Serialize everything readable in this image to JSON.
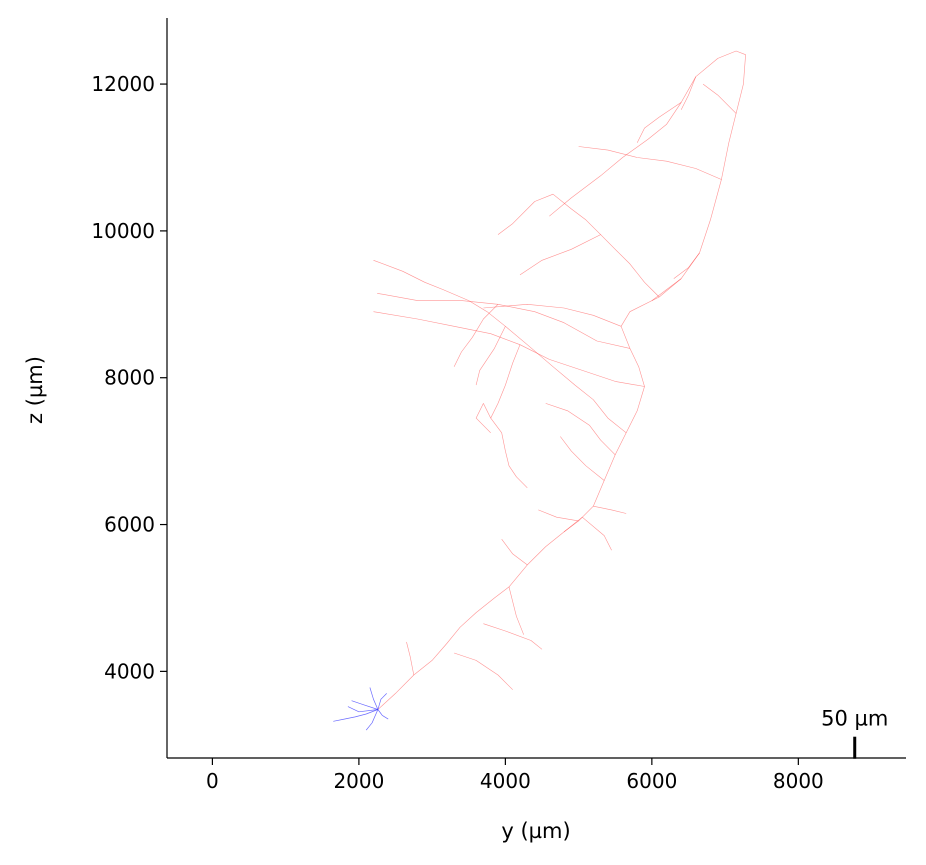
{
  "chart_data": {
    "type": "line",
    "title": "",
    "xlabel": "y (µm)",
    "ylabel": "z (µm)",
    "xlim": [
      -620,
      9470
    ],
    "ylim": [
      2820,
      12900
    ],
    "x_ticks": [
      0,
      2000,
      4000,
      6000,
      8000
    ],
    "x_tick_labels": [
      "0",
      "2000",
      "4000",
      "6000",
      "8000"
    ],
    "y_ticks": [
      4000,
      6000,
      8000,
      10000,
      12000
    ],
    "y_tick_labels": [
      "4000",
      "6000",
      "8000",
      "10000",
      "12000"
    ],
    "grid": false,
    "legend": "none",
    "scale_bar": {
      "label": "50 µm",
      "length": 50,
      "x": 8770,
      "y": 2960
    },
    "series": [
      {
        "color": "#ff3b3b",
        "paths": [
          [
            [
              2260,
              3480
            ],
            [
              2500,
              3700
            ],
            [
              2750,
              3950
            ],
            [
              3000,
              4150
            ],
            [
              3200,
              4380
            ],
            [
              3380,
              4600
            ],
            [
              3600,
              4800
            ],
            [
              3850,
              5000
            ],
            [
              4050,
              5150
            ],
            [
              4300,
              5450
            ],
            [
              4550,
              5700
            ],
            [
              4800,
              5900
            ],
            [
              5000,
              6050
            ],
            [
              5200,
              6250
            ],
            [
              5350,
              6600
            ],
            [
              5500,
              6950
            ],
            [
              5650,
              7250
            ],
            [
              5800,
              7550
            ],
            [
              5900,
              7880
            ],
            [
              5820,
              8150
            ],
            [
              5700,
              8400
            ],
            [
              5580,
              8700
            ],
            [
              5700,
              8900
            ],
            [
              6100,
              9100
            ],
            [
              6400,
              9350
            ],
            [
              6650,
              9700
            ],
            [
              6800,
              10150
            ],
            [
              6950,
              10700
            ],
            [
              7050,
              11200
            ],
            [
              7150,
              11600
            ],
            [
              7250,
              12000
            ],
            [
              7280,
              12400
            ],
            [
              7150,
              12450
            ],
            [
              6900,
              12350
            ],
            [
              6600,
              12100
            ],
            [
              6400,
              11750
            ],
            [
              6200,
              11450
            ],
            [
              5950,
              11250
            ],
            [
              5600,
              11000
            ],
            [
              5300,
              10750
            ],
            [
              4900,
              10450
            ],
            [
              4600,
              10200
            ]
          ],
          [
            [
              2750,
              3950
            ],
            [
              2700,
              4200
            ],
            [
              2650,
              4400
            ]
          ],
          [
            [
              3300,
              4250
            ],
            [
              3600,
              4150
            ],
            [
              3900,
              3950
            ],
            [
              4100,
              3750
            ]
          ],
          [
            [
              3700,
              4650
            ],
            [
              4000,
              4550
            ],
            [
              4350,
              4420
            ],
            [
              4500,
              4300
            ]
          ],
          [
            [
              4050,
              5150
            ],
            [
              4150,
              4750
            ],
            [
              4250,
              4500
            ]
          ],
          [
            [
              4300,
              5450
            ],
            [
              4100,
              5600
            ],
            [
              3950,
              5800
            ]
          ],
          [
            [
              4800,
              5900
            ],
            [
              5050,
              6100
            ],
            [
              5350,
              5850
            ],
            [
              5450,
              5650
            ]
          ],
          [
            [
              5000,
              6050
            ],
            [
              4700,
              6100
            ],
            [
              4450,
              6200
            ]
          ],
          [
            [
              5200,
              6250
            ],
            [
              5450,
              6200
            ],
            [
              5650,
              6150
            ]
          ],
          [
            [
              5350,
              6600
            ],
            [
              5100,
              6800
            ],
            [
              4900,
              7000
            ],
            [
              4750,
              7200
            ]
          ],
          [
            [
              5500,
              6950
            ],
            [
              5300,
              7150
            ],
            [
              5150,
              7350
            ],
            [
              4850,
              7550
            ],
            [
              4550,
              7650
            ]
          ],
          [
            [
              5650,
              7250
            ],
            [
              5400,
              7450
            ],
            [
              5200,
              7700
            ],
            [
              4950,
              7900
            ],
            [
              4650,
              8150
            ],
            [
              4300,
              8450
            ],
            [
              4000,
              8700
            ],
            [
              3750,
              8900
            ],
            [
              3500,
              9050
            ],
            [
              3150,
              9200
            ],
            [
              2900,
              9300
            ],
            [
              2600,
              9450
            ],
            [
              2200,
              9600
            ]
          ],
          [
            [
              5900,
              7880
            ],
            [
              5500,
              7950
            ],
            [
              5050,
              8100
            ],
            [
              4600,
              8250
            ],
            [
              4200,
              8450
            ],
            [
              3800,
              8600
            ],
            [
              3300,
              8700
            ],
            [
              2800,
              8800
            ],
            [
              2200,
              8900
            ]
          ],
          [
            [
              5700,
              8400
            ],
            [
              5250,
              8500
            ],
            [
              4800,
              8750
            ],
            [
              4400,
              8900
            ],
            [
              3900,
              9000
            ],
            [
              3400,
              9050
            ],
            [
              2800,
              9050
            ],
            [
              2250,
              9150
            ]
          ],
          [
            [
              5580,
              8700
            ],
            [
              5200,
              8850
            ],
            [
              4800,
              8950
            ],
            [
              4300,
              9000
            ],
            [
              3700,
              8950
            ]
          ],
          [
            [
              3900,
              9000
            ],
            [
              3700,
              8800
            ],
            [
              3550,
              8550
            ],
            [
              3400,
              8350
            ],
            [
              3300,
              8150
            ]
          ],
          [
            [
              4200,
              8450
            ],
            [
              4100,
              8200
            ],
            [
              4000,
              7900
            ],
            [
              3900,
              7650
            ],
            [
              3800,
              7450
            ],
            [
              3950,
              7250
            ],
            [
              4000,
              7000
            ],
            [
              4050,
              6800
            ],
            [
              4150,
              6650
            ],
            [
              4300,
              6500
            ]
          ],
          [
            [
              3800,
              7450
            ],
            [
              3700,
              7650
            ],
            [
              3600,
              7450
            ],
            [
              3800,
              7250
            ]
          ],
          [
            [
              4000,
              8700
            ],
            [
              3850,
              8400
            ],
            [
              3650,
              8100
            ],
            [
              3600,
              7900
            ]
          ],
          [
            [
              6100,
              9100
            ],
            [
              5900,
              9300
            ],
            [
              5700,
              9550
            ],
            [
              5500,
              9750
            ],
            [
              5300,
              9950
            ],
            [
              5100,
              10150
            ],
            [
              4900,
              10300
            ],
            [
              4650,
              10500
            ],
            [
              4400,
              10400
            ],
            [
              4100,
              10100
            ],
            [
              3900,
              9950
            ]
          ],
          [
            [
              5300,
              9950
            ],
            [
              4900,
              9750
            ],
            [
              4500,
              9600
            ],
            [
              4200,
              9400
            ]
          ],
          [
            [
              6400,
              9350
            ],
            [
              6200,
              9200
            ],
            [
              6000,
              9050
            ]
          ],
          [
            [
              6650,
              9700
            ],
            [
              6500,
              9500
            ],
            [
              6300,
              9350
            ]
          ],
          [
            [
              6950,
              10700
            ],
            [
              6600,
              10850
            ],
            [
              6200,
              10950
            ],
            [
              5800,
              11000
            ],
            [
              5400,
              11100
            ],
            [
              5000,
              11150
            ]
          ],
          [
            [
              6400,
              11750
            ],
            [
              6100,
              11550
            ],
            [
              5900,
              11400
            ],
            [
              5800,
              11200
            ]
          ],
          [
            [
              6600,
              12100
            ],
            [
              6500,
              11850
            ],
            [
              6400,
              11650
            ]
          ],
          [
            [
              7150,
              11600
            ],
            [
              6900,
              11850
            ],
            [
              6700,
              12000
            ]
          ]
        ]
      },
      {
        "color": "#3a3aff",
        "paths": [
          [
            [
              2260,
              3480
            ],
            [
              2100,
              3420
            ],
            [
              1950,
              3380
            ],
            [
              1800,
              3350
            ],
            [
              1650,
              3320
            ]
          ],
          [
            [
              2260,
              3480
            ],
            [
              2200,
              3620
            ],
            [
              2150,
              3780
            ]
          ],
          [
            [
              2260,
              3480
            ],
            [
              2050,
              3550
            ],
            [
              1900,
              3600
            ]
          ],
          [
            [
              2260,
              3480
            ],
            [
              2300,
              3620
            ],
            [
              2380,
              3700
            ]
          ],
          [
            [
              2260,
              3480
            ],
            [
              2180,
              3300
            ],
            [
              2100,
              3200
            ]
          ],
          [
            [
              2260,
              3480
            ],
            [
              2000,
              3450
            ],
            [
              1850,
              3520
            ]
          ],
          [
            [
              2260,
              3480
            ],
            [
              2320,
              3400
            ],
            [
              2400,
              3350
            ]
          ]
        ]
      }
    ]
  }
}
